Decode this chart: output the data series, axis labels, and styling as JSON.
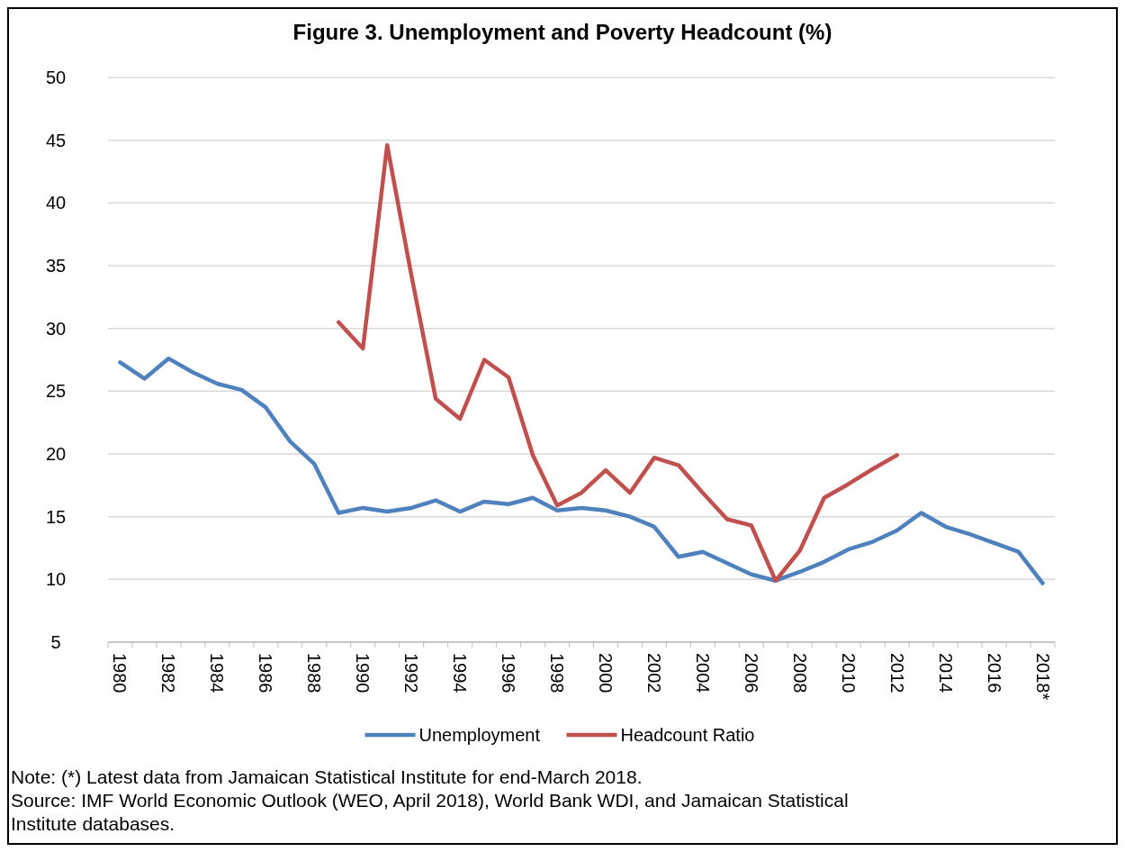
{
  "chart_data": {
    "type": "line",
    "title": "Figure 3. Unemployment and Poverty Headcount (%)",
    "categories": [
      "1980",
      null,
      "1982",
      null,
      "1984",
      null,
      "1986",
      null,
      "1988",
      null,
      "1990",
      null,
      "1992",
      null,
      "1994",
      null,
      "1996",
      null,
      "1998",
      null,
      "2000",
      null,
      "2002",
      null,
      "2004",
      null,
      "2006",
      null,
      "2008",
      null,
      "2010",
      null,
      "2012",
      null,
      "2014",
      null,
      "2016",
      null,
      "2018*"
    ],
    "series": [
      {
        "name": "Unemployment",
        "color": "#4f81bd",
        "values": [
          27.3,
          26.0,
          27.6,
          26.5,
          25.6,
          25.1,
          23.7,
          21.0,
          19.2,
          15.3,
          15.7,
          15.4,
          15.7,
          16.3,
          15.4,
          16.2,
          16.0,
          16.5,
          15.5,
          15.7,
          15.5,
          15.0,
          14.2,
          11.8,
          12.2,
          11.3,
          10.4,
          9.9,
          10.6,
          11.4,
          12.4,
          13.0,
          13.9,
          15.3,
          14.2,
          13.6,
          12.9,
          12.2,
          9.7
        ]
      },
      {
        "name": "Headcount Ratio",
        "color": "#c0504d",
        "values": [
          null,
          null,
          null,
          null,
          null,
          null,
          null,
          null,
          null,
          30.5,
          28.4,
          44.6,
          34.2,
          24.4,
          22.8,
          27.5,
          26.1,
          19.9,
          15.9,
          16.9,
          18.7,
          16.9,
          19.7,
          19.1,
          16.9,
          14.8,
          14.3,
          9.9,
          12.3,
          16.5,
          17.6,
          18.8,
          19.9,
          null,
          null,
          null,
          null,
          null,
          null
        ]
      }
    ],
    "ylim": [
      5,
      50
    ],
    "yticks": [
      5,
      10,
      15,
      20,
      25,
      30,
      35,
      40,
      45,
      50
    ],
    "grid": "y",
    "legend": "bottom",
    "line_style": "solid",
    "annotations": [
      "Note: (*) Latest data from Jamaican Statistical Institute for end-March 2018.",
      "Source: IMF World Economic Outlook (WEO, April 2018), World Bank WDI, and Jamaican Statistical Institute databases."
    ]
  }
}
